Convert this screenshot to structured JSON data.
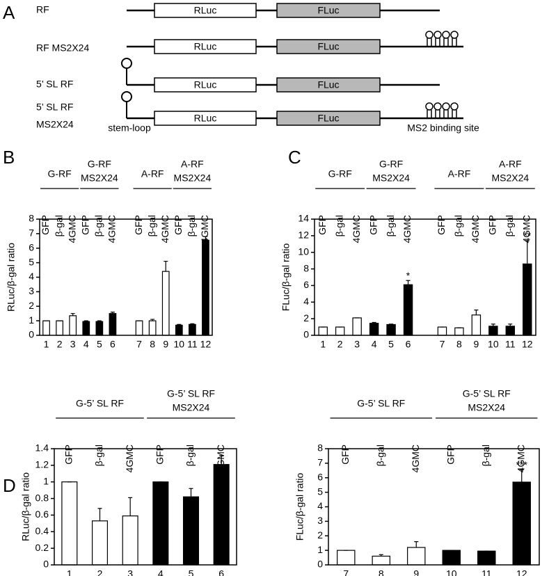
{
  "panel_a": {
    "letter": "A",
    "rows": [
      {
        "label_lines": [
          "RF"
        ]
      },
      {
        "label_lines": [
          "RF MS2X24"
        ]
      },
      {
        "label_lines": [
          "5’ SL RF"
        ]
      },
      {
        "label_lines": [
          "5’ SL RF",
          "MS2X24"
        ]
      }
    ],
    "box_labels": [
      "RLuc",
      "FLuc"
    ],
    "stem_loop_label": "stem-loop",
    "ms2_label": "MS2 binding site"
  },
  "chart_data": [
    {
      "type": "bar",
      "panel_letter": "B",
      "ylabel": "RLuc/β-gal ratio",
      "groups": [
        {
          "label_lines": [
            "G-RF"
          ]
        },
        {
          "label_lines": [
            "G-RF",
            "MS2X24"
          ]
        },
        {
          "label_lines": [
            "A-RF"
          ]
        },
        {
          "label_lines": [
            "A-RF",
            "MS2X24"
          ]
        }
      ],
      "bar_labels": [
        "GFP",
        "β-gal",
        "4GMC",
        "GFP",
        "β-gal",
        "4GMC",
        "GFP",
        "β-gal",
        "4GMC",
        "GFP",
        "β-gal",
        "4GMC"
      ],
      "categories": [
        "1",
        "2",
        "3",
        "4",
        "5",
        "6",
        "7",
        "8",
        "9",
        "10",
        "11",
        "12"
      ],
      "values": [
        1.0,
        1.0,
        1.35,
        0.95,
        0.95,
        1.5,
        1.0,
        1.0,
        4.4,
        0.7,
        0.75,
        6.55
      ],
      "errors": [
        0,
        0,
        0.15,
        0.05,
        0.05,
        0.1,
        0,
        0.1,
        0.7,
        0.05,
        0.05,
        0.25
      ],
      "colors": [
        "#ffffff",
        "#ffffff",
        "#ffffff",
        "#000000",
        "#000000",
        "#000000",
        "#ffffff",
        "#ffffff",
        "#ffffff",
        "#000000",
        "#000000",
        "#000000"
      ],
      "ylim": [
        0,
        8
      ],
      "yticks": [
        0,
        1,
        2,
        3,
        4,
        5,
        6,
        7,
        8
      ]
    },
    {
      "type": "bar",
      "panel_letter": "C",
      "ylabel": "FLuc/β-gal ratio",
      "groups": [
        {
          "label_lines": [
            "G-RF"
          ]
        },
        {
          "label_lines": [
            "G-RF",
            "MS2X24"
          ]
        },
        {
          "label_lines": [
            "A-RF"
          ]
        },
        {
          "label_lines": [
            "A-RF",
            "MS2X24"
          ]
        }
      ],
      "bar_labels": [
        "GFP",
        "β-gal",
        "4GMC",
        "GFP",
        "β-gal",
        "4GMC",
        "GFP",
        "β-gal",
        "4GMC",
        "GFP",
        "β-gal",
        "4GMC"
      ],
      "categories": [
        "1",
        "2",
        "3",
        "4",
        "5",
        "6",
        "7",
        "8",
        "9",
        "10",
        "11",
        "12"
      ],
      "values": [
        1.0,
        1.0,
        2.1,
        1.45,
        1.3,
        6.1,
        1.0,
        0.9,
        2.45,
        1.1,
        1.1,
        8.6
      ],
      "errors": [
        0,
        0,
        0,
        0.1,
        0.05,
        0.5,
        0,
        0,
        0.6,
        0.25,
        0.25,
        2.8
      ],
      "sig_labels": [
        null,
        null,
        null,
        null,
        null,
        "*",
        null,
        null,
        null,
        null,
        null,
        "**"
      ],
      "colors": [
        "#ffffff",
        "#ffffff",
        "#ffffff",
        "#000000",
        "#000000",
        "#000000",
        "#ffffff",
        "#ffffff",
        "#ffffff",
        "#000000",
        "#000000",
        "#000000"
      ],
      "ylim": [
        0,
        14
      ],
      "yticks": [
        0,
        2,
        4,
        6,
        8,
        10,
        12,
        14
      ]
    },
    {
      "type": "bar",
      "panel_letter": "D",
      "ylabel": "RLuc/β-gal ratio",
      "groups": [
        {
          "label_lines": [
            "G-5’ SL RF"
          ]
        },
        {
          "label_lines": [
            "G-5’ SL RF",
            "MS2X24"
          ]
        }
      ],
      "bar_labels": [
        "GFP",
        "β-gal",
        "4GMC",
        "GFP",
        "β-gal",
        "4GMC"
      ],
      "categories": [
        "1",
        "2",
        "3",
        "4",
        "5",
        "6"
      ],
      "values": [
        1.0,
        0.53,
        0.59,
        1.0,
        0.82,
        1.21
      ],
      "errors": [
        0,
        0.15,
        0.22,
        0,
        0.1,
        0.11
      ],
      "colors": [
        "#ffffff",
        "#ffffff",
        "#ffffff",
        "#000000",
        "#000000",
        "#000000"
      ],
      "ylim": [
        0,
        1.4
      ],
      "yticks": [
        0,
        0.2,
        0.4,
        0.6,
        0.8,
        1,
        1.2,
        1.4
      ]
    },
    {
      "type": "bar",
      "ylabel": "FLuc/β-gal ratio",
      "groups": [
        {
          "label_lines": [
            "G-5’ SL RF"
          ]
        },
        {
          "label_lines": [
            "G-5’ SL RF",
            "MS2X24"
          ]
        }
      ],
      "bar_labels": [
        "GFP",
        "β-gal",
        "4GMC",
        "GFP",
        "β-gal",
        "4GMC"
      ],
      "categories": [
        "7",
        "8",
        "9",
        "10",
        "11",
        "12"
      ],
      "values": [
        1.0,
        0.6,
        1.2,
        1.0,
        0.95,
        5.7
      ],
      "errors": [
        0,
        0.1,
        0.4,
        0,
        0,
        0.85
      ],
      "sig_labels": [
        null,
        null,
        null,
        null,
        null,
        "***"
      ],
      "colors": [
        "#ffffff",
        "#ffffff",
        "#ffffff",
        "#000000",
        "#000000",
        "#000000"
      ],
      "ylim": [
        0,
        8
      ],
      "yticks": [
        0,
        1,
        2,
        3,
        4,
        5,
        6,
        7,
        8
      ]
    }
  ]
}
